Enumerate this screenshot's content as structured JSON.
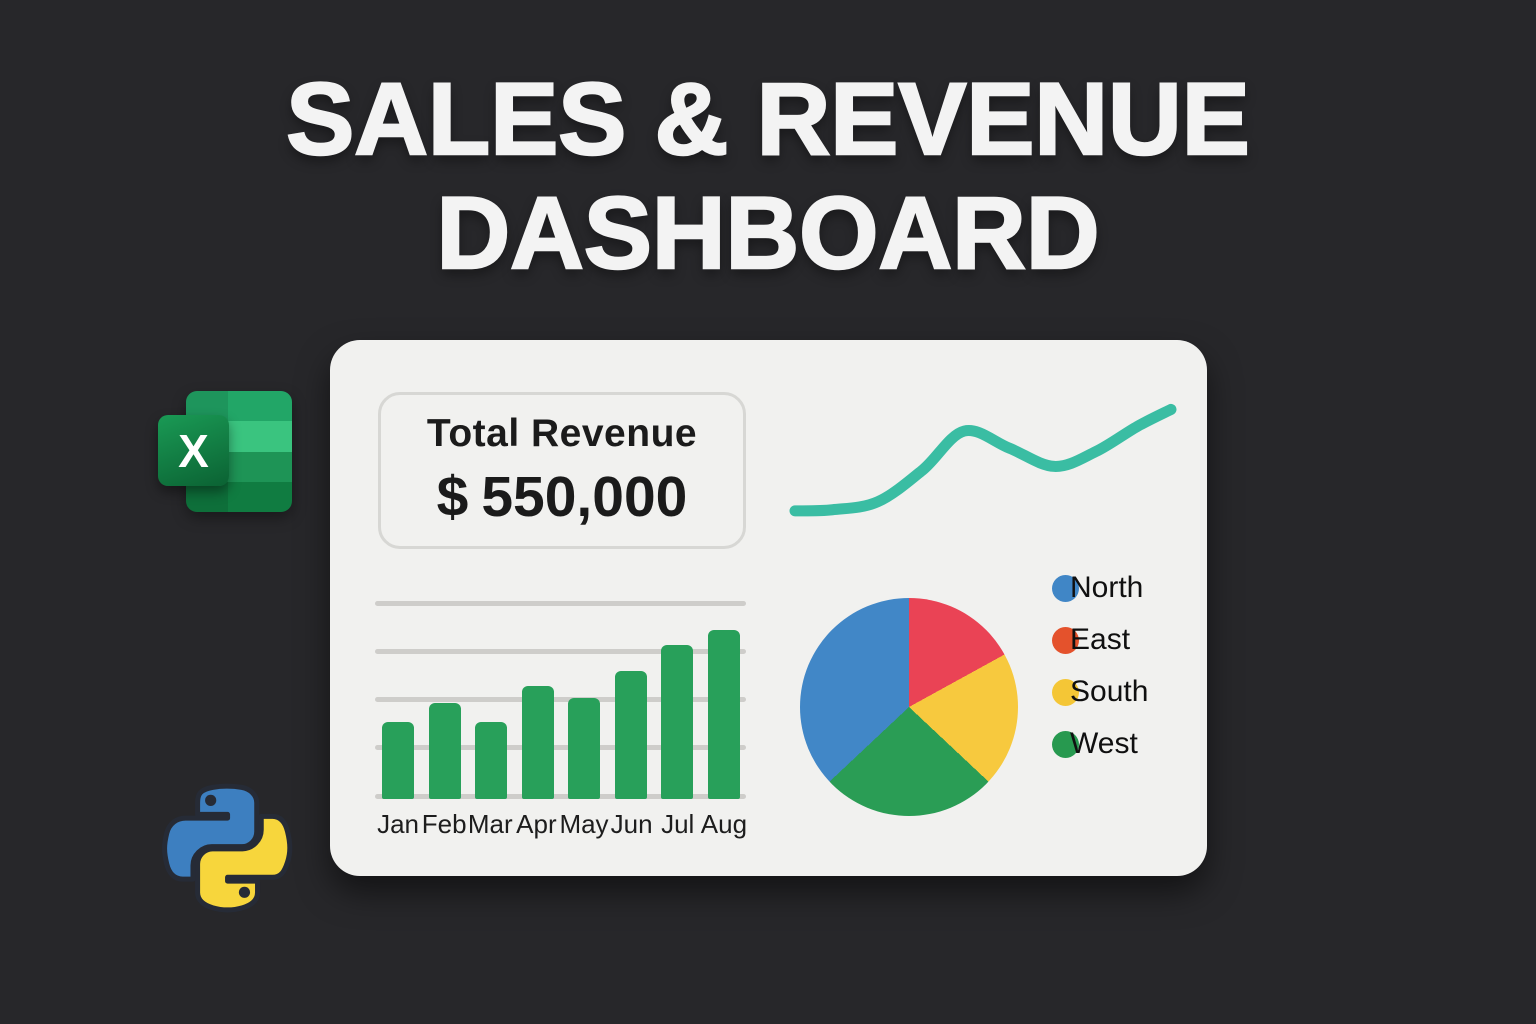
{
  "page": {
    "background": "#27272a",
    "title_line1": "SALES & REVENUE",
    "title_line2": "DASHBOARD",
    "title_color": "#f3f3f3"
  },
  "icons": {
    "excel_badge_letter": "X",
    "excel_band_colors": [
      "#22a667",
      "#3ac47f",
      "#1e9456",
      "#107c41"
    ],
    "excel_badge_colors": [
      "#1a9a55",
      "#0b6233"
    ],
    "python_blue": "#3d7fc0",
    "python_yellow": "#f7d63c",
    "python_outline": "#262b36"
  },
  "dashboard": {
    "card_background": "#f1f1ef",
    "text_color": "#1b1b1b",
    "kpi": {
      "label": "Total Revenue",
      "currency": "$",
      "amount": "550,000"
    }
  },
  "chart_data": [
    {
      "id": "revenue-trend",
      "type": "line",
      "color": "#3abda3",
      "stroke_width": 11,
      "points": [
        [
          0,
          8
        ],
        [
          10,
          9
        ],
        [
          22,
          16
        ],
        [
          34,
          44
        ],
        [
          45,
          78
        ],
        [
          57,
          63
        ],
        [
          69,
          47
        ],
        [
          80,
          60
        ],
        [
          91,
          82
        ],
        [
          100,
          97
        ]
      ],
      "title": "",
      "xlabel": "",
      "ylabel": "",
      "grid": false,
      "legend": false
    },
    {
      "id": "monthly-sales",
      "type": "bar",
      "categories": [
        "Jan",
        "Feb",
        "Mar",
        "Apr",
        "May",
        "Jun",
        "Jul",
        "Aug"
      ],
      "values": [
        1.6,
        2.0,
        1.6,
        2.35,
        2.1,
        2.65,
        3.2,
        3.5
      ],
      "ylim": [
        0,
        4
      ],
      "bar_color": "#28a05a",
      "gridline_color": "#cecdca",
      "gridline_count": 5,
      "label_color": "#1d1d1d",
      "title": "",
      "xlabel": "",
      "ylabel": ""
    },
    {
      "id": "regional-share",
      "type": "pie",
      "slices": [
        {
          "label": "North",
          "value": 37,
          "color": "#4187c7",
          "dot_color": "#4086c6"
        },
        {
          "label": "East",
          "value": 17,
          "color": "#ea4355",
          "dot_color": "#e4522c"
        },
        {
          "label": "South",
          "value": 20,
          "color": "#f7c93e",
          "dot_color": "#f4c636"
        },
        {
          "label": "West",
          "value": 26,
          "color": "#2a9d55",
          "dot_color": "#27994f"
        }
      ],
      "draw_order_clockwise_from_top": [
        "East",
        "South",
        "West",
        "North"
      ],
      "legend_position": "right",
      "legend_text_color": "#101010",
      "title": ""
    }
  ]
}
